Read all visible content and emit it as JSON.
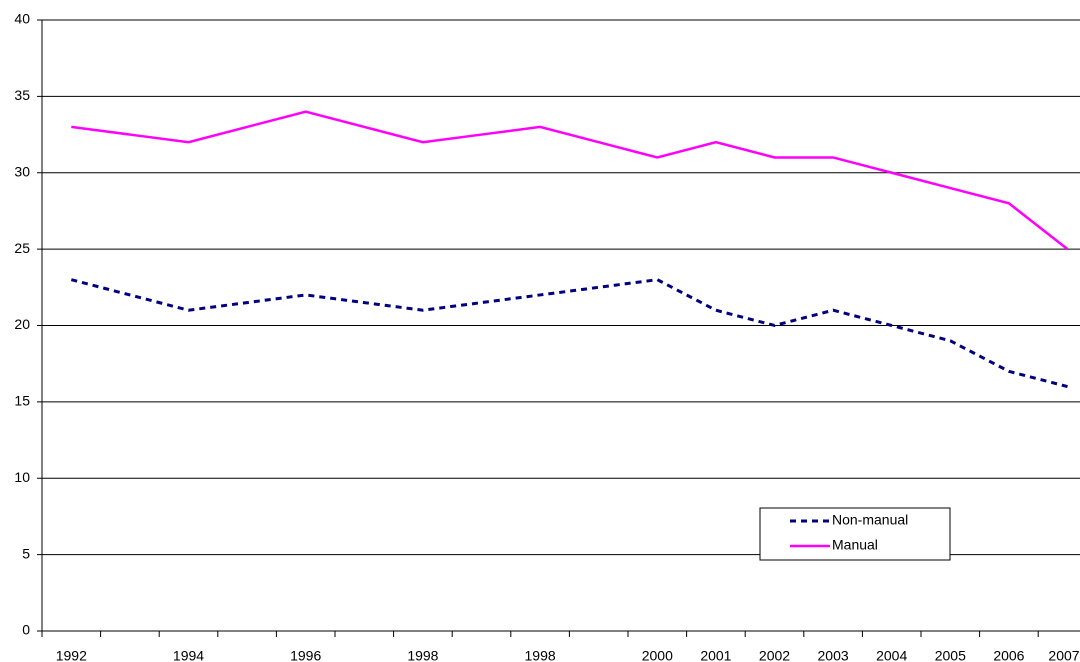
{
  "chart_data": {
    "type": "line",
    "categories": [
      "1992",
      null,
      "1994",
      null,
      "1996",
      null,
      "1998",
      null,
      "1998",
      null,
      "2000",
      "2001",
      "2002",
      "2003",
      "2004",
      "2005",
      "2006",
      "2007"
    ],
    "series": [
      {
        "name": "Non-manual",
        "color": "#000080",
        "dashed": true,
        "values": [
          23,
          22,
          21,
          21.5,
          22,
          21.5,
          21,
          21.5,
          22,
          22.5,
          23,
          21,
          20,
          21,
          20,
          19,
          17,
          16
        ]
      },
      {
        "name": "Manual",
        "color": "#ff00ff",
        "dashed": false,
        "values": [
          33,
          32.5,
          32,
          33,
          34,
          33,
          32,
          32.5,
          33,
          32,
          31,
          32,
          31,
          31,
          30,
          29,
          28,
          25
        ]
      }
    ],
    "ylim": [
      0,
      40
    ],
    "yticks": [
      0,
      5,
      10,
      15,
      20,
      25,
      30,
      35,
      40
    ],
    "grid": true,
    "legend": "lower right"
  }
}
